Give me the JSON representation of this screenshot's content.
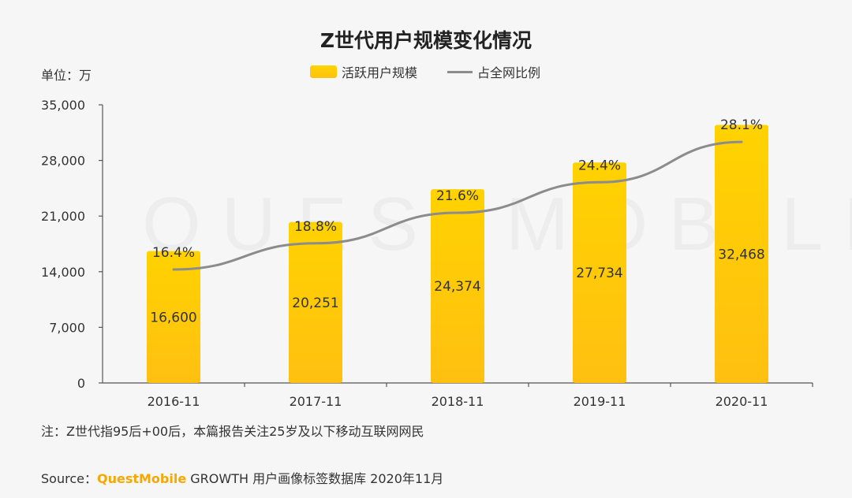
{
  "chart_data": {
    "type": "bar",
    "title": "Z世代用户规模变化情况",
    "unit_label": "单位：万",
    "categories": [
      "2016-11",
      "2017-11",
      "2018-11",
      "2019-11",
      "2020-11"
    ],
    "series": [
      {
        "name": "活跃用户规模",
        "type": "bar",
        "values": [
          16600,
          20251,
          24374,
          27734,
          32468
        ],
        "labels": [
          "16,600",
          "20,251",
          "24,374",
          "27,734",
          "32,468"
        ],
        "color": "#ffc20e"
      },
      {
        "name": "占全网比例",
        "type": "line",
        "values": [
          16.4,
          18.8,
          21.6,
          24.4,
          28.1
        ],
        "labels": [
          "16.4%",
          "18.8%",
          "21.6%",
          "24.4%",
          "28.1%"
        ],
        "color": "#8c8c8c"
      }
    ],
    "ylim": [
      0,
      35000
    ],
    "yticks": [
      "0",
      "7,000",
      "14,000",
      "21,000",
      "28,000",
      "35,000"
    ],
    "legend_position": "top-center",
    "grid": false
  },
  "note": "注：Z世代指95后+00后，本篇报告关注25岁及以下移动互联网网民",
  "source": {
    "prefix": "Source：",
    "brand": "QuestMobile",
    "rest": "GROWTH 用户画像标签数据库 2020年11月"
  },
  "watermark": "QUESTMOBILE"
}
